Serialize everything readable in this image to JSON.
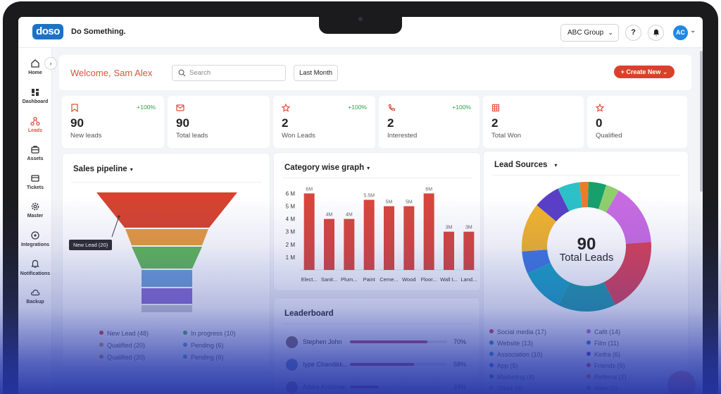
{
  "app": {
    "logo_text": "doso",
    "brand_name": "Do Something."
  },
  "header": {
    "org_selector": "ABC Group",
    "help_label": "?",
    "avatar_initials": "AC"
  },
  "sidebar": {
    "items": [
      {
        "label": "Home",
        "icon": "home-icon"
      },
      {
        "label": "Dashboard",
        "icon": "dashboard-icon"
      },
      {
        "label": "Leads",
        "icon": "leads-icon",
        "active": true
      },
      {
        "label": "Assets",
        "icon": "assets-icon"
      },
      {
        "label": "Tickets",
        "icon": "tickets-icon"
      },
      {
        "label": "Master",
        "icon": "master-icon"
      },
      {
        "label": "Integrations",
        "icon": "integrations-icon"
      },
      {
        "label": "Notifications",
        "icon": "notifications-icon"
      },
      {
        "label": "Backup",
        "icon": "backup-icon"
      }
    ]
  },
  "welcome": {
    "greeting": "Welcome,",
    "name": "Sam Alex"
  },
  "toolbar": {
    "search_placeholder": "Search",
    "period": "Last Month",
    "create_label": "+ Create New ⌄"
  },
  "stats": [
    {
      "value": "90",
      "label": "New leads",
      "delta": "+100%",
      "icon": "bookmark-icon"
    },
    {
      "value": "90",
      "label": "Total leads",
      "delta": "",
      "icon": "mail-icon"
    },
    {
      "value": "2",
      "label": "Won Leads",
      "delta": "+100%",
      "icon": "star-icon"
    },
    {
      "value": "2",
      "label": "Interested",
      "delta": "+100%",
      "icon": "phone-icon"
    },
    {
      "value": "2",
      "label": "Total Won",
      "delta": "",
      "icon": "calendar-icon"
    },
    {
      "value": "0",
      "label": "Qualified",
      "delta": "",
      "icon": "star-icon"
    }
  ],
  "pipeline": {
    "title": "Sales pipeline",
    "tooltip": "New Lead  (20)",
    "legend": [
      {
        "label": "New Lead (48)",
        "color": "#d9412c"
      },
      {
        "label": "Qualified (20)",
        "color": "#e39b45"
      },
      {
        "label": "Qualified (20)",
        "color": "#e5883a"
      },
      {
        "label": "In progress (10)",
        "color": "#4fb055"
      },
      {
        "label": "Pending (6)",
        "color": "#6f9fd6"
      },
      {
        "label": "Pending (6)",
        "color": "#6f9fd6"
      }
    ]
  },
  "category": {
    "title": "Category wise graph"
  },
  "chart_data": [
    {
      "type": "bar",
      "title": "Category wise graph",
      "categories": [
        "Elect...",
        "Sanit...",
        "Plum...",
        "Paint",
        "Ceme...",
        "Wood",
        "Floor...",
        "Wall t...",
        "Land..."
      ],
      "values": [
        6,
        4,
        4,
        5.5,
        5,
        5,
        6,
        3,
        3
      ],
      "data_labels": [
        "6M",
        "4M",
        "4M",
        "5.5M",
        "5M",
        "5M",
        "6M",
        "3M",
        "3M"
      ],
      "y_ticks": [
        "1 M",
        "2 M",
        "3 M",
        "4 M",
        "5 M",
        "6 M"
      ],
      "ylim": [
        0,
        6.3
      ],
      "color": "#d9453c",
      "grid": false
    },
    {
      "type": "pie",
      "title": "Lead Sources",
      "center_value": "90",
      "center_label": "Total Leads",
      "slices": [
        {
          "label": "Cafit (14)",
          "value": 14,
          "color": "#c86be2"
        },
        {
          "label": "Social media (17)",
          "value": 17,
          "color": "#d94057"
        },
        {
          "label": "Website (13)",
          "value": 13,
          "color": "#1f9aa8"
        },
        {
          "label": "Association (10)",
          "value": 10,
          "color": "#1aa3c4"
        },
        {
          "label": "App (5)",
          "value": 5,
          "color": "#3f78e0"
        },
        {
          "label": "Film (11)",
          "value": 11,
          "color": "#f2b32c"
        },
        {
          "label": "Kinfra (6)",
          "value": 6,
          "color": "#5a3fc6"
        },
        {
          "label": "Friends (5)",
          "value": 5,
          "color": "#2cc1c6"
        },
        {
          "label": "Referral (2)",
          "value": 2,
          "color": "#ee7a2a"
        },
        {
          "label": "Marketing (4)",
          "value": 4,
          "color": "#17a06b"
        },
        {
          "label": "Other (3)",
          "value": 3,
          "color": "#8fcf6b"
        }
      ]
    }
  ],
  "lead_sources": {
    "title": "Lead Sources",
    "center_value": "90",
    "center_label": "Total Leads",
    "legend_left": [
      {
        "label": "Social media (17)",
        "color": "#d94057"
      },
      {
        "label": "Website (13)",
        "color": "#1f9aa8"
      },
      {
        "label": "Association (10)",
        "color": "#1aa3c4"
      },
      {
        "label": "App (5)",
        "color": "#3f78e0"
      },
      {
        "label": "Marketing (4)",
        "color": "#17a06b"
      },
      {
        "label": "Other (3)",
        "color": "#8fcf6b"
      }
    ],
    "legend_right": [
      {
        "label": "Cafit (14)",
        "color": "#c86be2"
      },
      {
        "label": "Film (11)",
        "color": "#3f78e0"
      },
      {
        "label": "Kinfra (6)",
        "color": "#5a3fc6"
      },
      {
        "label": "Friends (5)",
        "color": "#d94057"
      },
      {
        "label": "Referral (2)",
        "color": "#ee7a2a"
      },
      {
        "label": "Alien (2)",
        "color": "#2cc1c6"
      }
    ]
  },
  "leaderboard": {
    "title": "Leaderboard",
    "rows": [
      {
        "name": "Stephen John",
        "percent": "70%",
        "fraction": 0.8,
        "avatar_color": "#8b6b62"
      },
      {
        "name": "Iype Chandikk...",
        "percent": "58%",
        "fraction": 0.66,
        "avatar_color": "#6a8fb0"
      },
      {
        "name": "Athira Krishnan",
        "percent": "24%",
        "fraction": 0.3,
        "avatar_color": "#9c7a6e"
      }
    ]
  }
}
